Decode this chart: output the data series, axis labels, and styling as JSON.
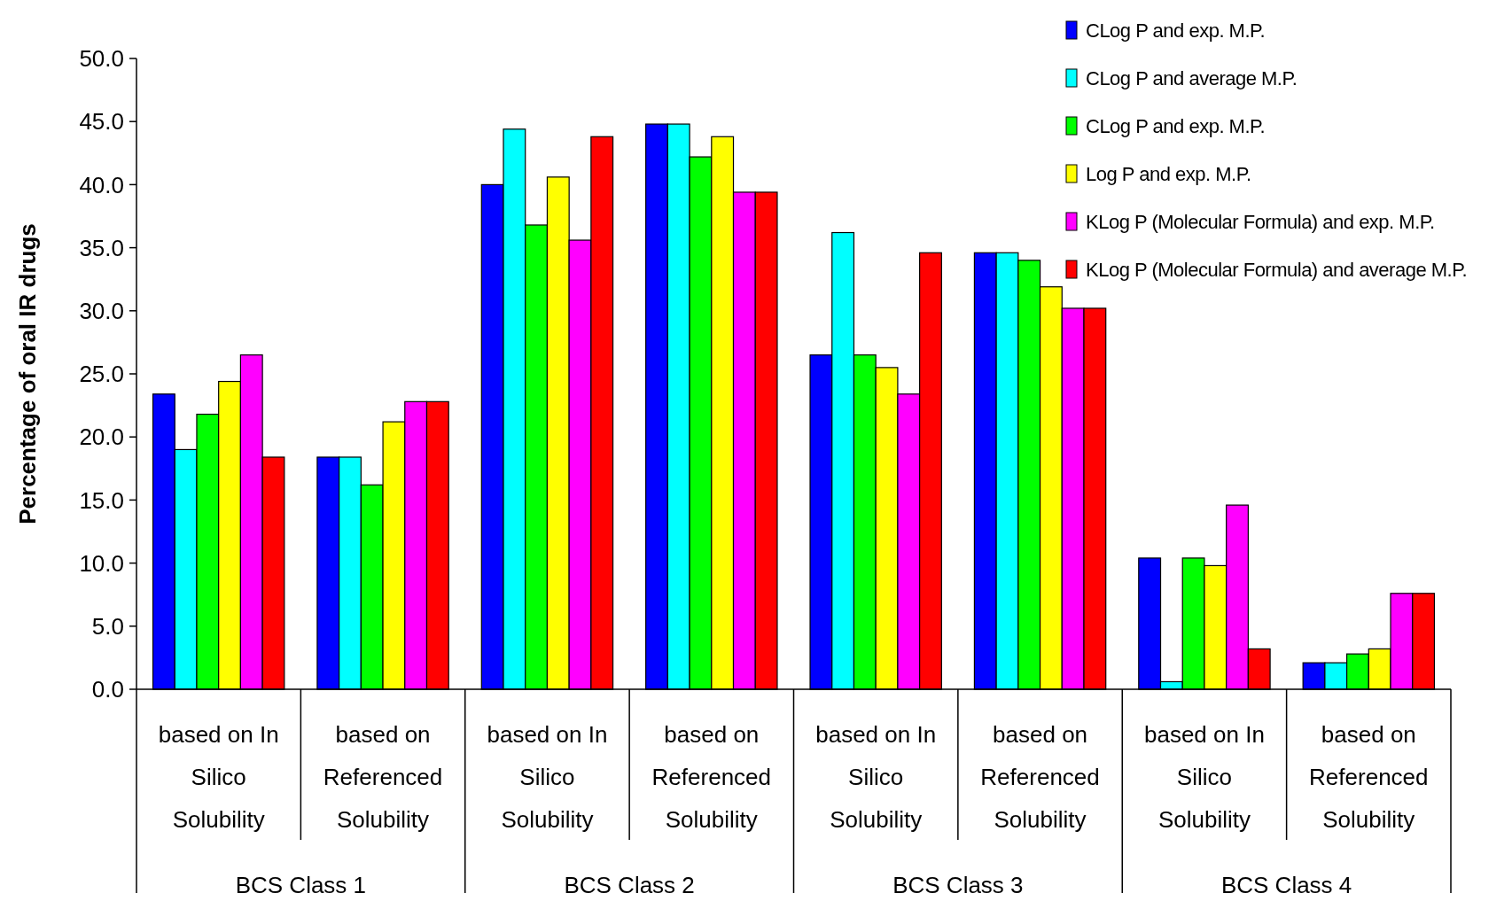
{
  "chart_data": {
    "type": "bar",
    "ylabel": "Percentage of oral IR drugs",
    "categories": [
      "based on In Silico Solubility",
      "based on Referenced Solubility",
      "based on In Silico Solubility",
      "based on Referenced Solubility",
      "based on In Silico Solubility",
      "based on Referenced Solubility",
      "based on In Silico Solubility",
      "based on Referenced Solubility"
    ],
    "annotations": [
      "BCS Class 1",
      "BCS Class 2",
      "BCS Class 3",
      "BCS Class 4"
    ],
    "series": [
      {
        "name": "CLog P and exp. M.P.",
        "color": "#0000ff",
        "values": [
          23.4,
          18.4,
          40.0,
          44.8,
          26.5,
          34.6,
          10.4,
          2.1
        ]
      },
      {
        "name": "CLog P and average M.P.",
        "color": "#00ffff",
        "values": [
          19.0,
          18.4,
          44.4,
          44.8,
          36.2,
          34.6,
          0.6,
          2.1
        ]
      },
      {
        "name": "CLog P and exp. M.P.",
        "color": "#00ff00",
        "values": [
          21.8,
          16.2,
          36.8,
          42.2,
          26.5,
          34.0,
          10.4,
          2.8
        ]
      },
      {
        "name": "Log P and exp. M.P.",
        "color": "#ffff00",
        "values": [
          24.4,
          21.2,
          40.6,
          43.8,
          25.5,
          31.9,
          9.8,
          3.2
        ]
      },
      {
        "name": "KLog P (Molecular Formula) and exp. M.P.",
        "color": "#ff00ff",
        "values": [
          26.5,
          22.8,
          35.6,
          39.4,
          23.4,
          30.2,
          14.6,
          7.6
        ]
      },
      {
        "name": "KLog P (Molecular Formula) and average M.P.",
        "color": "#ff0000",
        "values": [
          18.4,
          22.8,
          43.8,
          39.4,
          34.6,
          30.2,
          3.2,
          7.6
        ]
      }
    ],
    "ylim": [
      0,
      50
    ],
    "yticks": [
      {
        "value": 0,
        "label": "0.0"
      },
      {
        "value": 5,
        "label": "5.0"
      },
      {
        "value": 10,
        "label": "10.0"
      },
      {
        "value": 15,
        "label": "15.0"
      },
      {
        "value": 20,
        "label": "20.0"
      },
      {
        "value": 25,
        "label": "25.0"
      },
      {
        "value": 30,
        "label": "30.0"
      },
      {
        "value": 35,
        "label": "35.0"
      },
      {
        "value": 40,
        "label": "40.0"
      },
      {
        "value": 45,
        "label": "45.0"
      },
      {
        "value": 50,
        "label": "50.0"
      }
    ],
    "grid": false,
    "legend": "top right"
  }
}
